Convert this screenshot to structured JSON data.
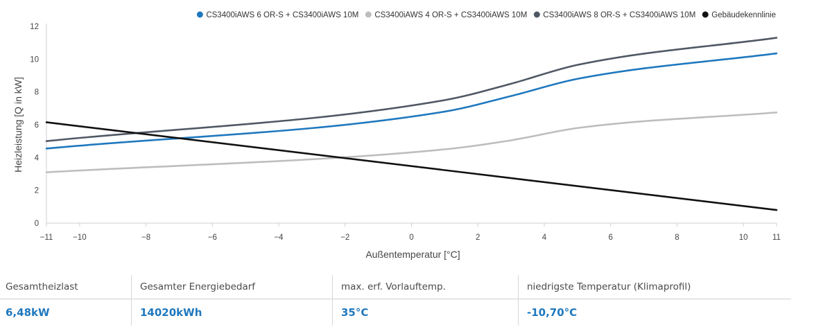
{
  "chart_data": {
    "type": "line",
    "xlabel": "Außentemperatur [°C]",
    "ylabel": "Heizleistung [Q in kW]",
    "xlim": [
      -11,
      11
    ],
    "ylim": [
      0,
      12
    ],
    "xticks": [
      -11,
      -10,
      -8,
      -6,
      -4,
      -2,
      0,
      2,
      4,
      6,
      8,
      10,
      11
    ],
    "xtick_labels": [
      "−11",
      "−10",
      "−8",
      "−6",
      "−4",
      "−2",
      "0",
      "2",
      "4",
      "6",
      "8",
      "10",
      "11"
    ],
    "yticks": [
      0,
      2,
      4,
      6,
      8,
      10,
      12
    ],
    "ytick_labels": [
      "0",
      "2",
      "4",
      "6",
      "8",
      "10",
      "12"
    ],
    "legend_position": "top-right",
    "grid": false,
    "series": [
      {
        "name": "CS3400iAWS 6 OR-S + CS3400iAWS 10M",
        "color": "#1f78be",
        "x": [
          -11,
          1,
          3,
          5,
          11
        ],
        "y": [
          4.55,
          6.8,
          7.75,
          8.8,
          10.35
        ]
      },
      {
        "name": "CS3400iAWS 4 OR-S + CS3400iAWS 10M",
        "color": "#bdbdbd",
        "x": [
          -11,
          1,
          3,
          5,
          11
        ],
        "y": [
          3.1,
          4.5,
          5.05,
          5.8,
          6.75
        ]
      },
      {
        "name": "CS3400iAWS 8 OR-S + CS3400iAWS 10M",
        "color": "#4f5864",
        "x": [
          -11,
          1,
          3,
          5,
          11
        ],
        "y": [
          5.0,
          7.5,
          8.5,
          9.65,
          11.3
        ]
      },
      {
        "name": "Gebäudekennlinie",
        "color": "#111111",
        "x": [
          -11,
          11
        ],
        "y": [
          6.15,
          0.8
        ]
      }
    ]
  },
  "summary": {
    "columns": [
      {
        "label": "Gesamtheizlast",
        "value": "6,48kW"
      },
      {
        "label": "Gesamter Energiebedarf",
        "value": "14020kWh"
      },
      {
        "label": "max. erf. Vorlauftemp.",
        "value": "35°C"
      },
      {
        "label": "niedrigste Temperatur (Klimaprofil)",
        "value": "-10,70°C"
      }
    ]
  }
}
